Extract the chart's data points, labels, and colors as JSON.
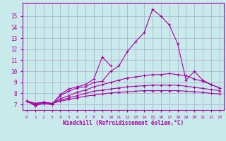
{
  "background_color": "#c8eaea",
  "grid_color": "#aaaacc",
  "line_color": "#aa00aa",
  "xlabel": "Windchill (Refroidissement éolien,°C)",
  "xlim": [
    -0.5,
    23.5
  ],
  "ylim": [
    6.5,
    16.2
  ],
  "xticks": [
    0,
    1,
    2,
    3,
    4,
    5,
    6,
    7,
    8,
    9,
    10,
    11,
    12,
    13,
    14,
    15,
    16,
    17,
    18,
    19,
    20,
    21,
    22,
    23
  ],
  "yticks": [
    7,
    8,
    9,
    10,
    11,
    12,
    13,
    14,
    15
  ],
  "series": [
    [
      7.3,
      6.9,
      7.1,
      7.0,
      7.8,
      8.2,
      8.5,
      8.6,
      9.0,
      9.1,
      10.0,
      10.5,
      11.8,
      12.7,
      13.5,
      15.6,
      15.0,
      14.2,
      12.5,
      9.2,
      10.0,
      9.2,
      8.8,
      8.5
    ],
    [
      7.3,
      6.9,
      7.1,
      7.0,
      7.9,
      8.4,
      8.6,
      8.8,
      9.3,
      11.3,
      10.5,
      null,
      null,
      null,
      null,
      null,
      null,
      null,
      null,
      null,
      null,
      null,
      null,
      null
    ],
    [
      7.3,
      7.0,
      7.2,
      7.1,
      7.5,
      7.8,
      8.1,
      8.3,
      8.6,
      8.8,
      9.0,
      9.2,
      9.4,
      9.5,
      9.6,
      9.7,
      9.7,
      9.8,
      9.7,
      9.6,
      9.3,
      9.1,
      8.8,
      8.5
    ],
    [
      7.3,
      7.1,
      7.2,
      7.1,
      7.35,
      7.6,
      7.8,
      8.0,
      8.2,
      8.3,
      8.4,
      8.5,
      8.6,
      8.65,
      8.7,
      8.75,
      8.75,
      8.75,
      8.75,
      8.65,
      8.55,
      8.45,
      8.35,
      8.25
    ],
    [
      7.3,
      7.1,
      7.2,
      7.1,
      7.3,
      7.45,
      7.6,
      7.75,
      7.85,
      7.95,
      8.05,
      8.1,
      8.15,
      8.2,
      8.25,
      8.25,
      8.25,
      8.25,
      8.25,
      8.2,
      8.15,
      8.1,
      8.0,
      7.95
    ]
  ]
}
